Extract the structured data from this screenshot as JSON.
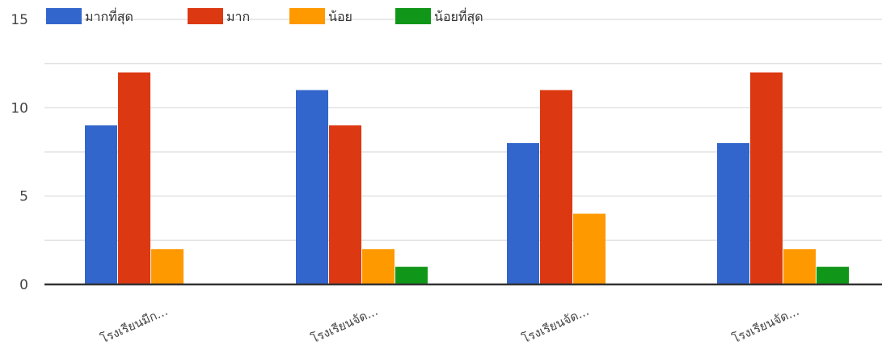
{
  "chart_data": {
    "type": "bar",
    "categories": [
      "โรงเรียนมีก...",
      "โรงเรียนจัด...",
      "โรงเรียนจัด...",
      "โรงเรียนจัด..."
    ],
    "series": [
      {
        "name": "มากที่สุด",
        "color": "#3366cc",
        "values": [
          9,
          11,
          8,
          8
        ]
      },
      {
        "name": "มาก",
        "color": "#dc3912",
        "values": [
          12,
          9,
          11,
          12
        ]
      },
      {
        "name": "น้อย",
        "color": "#ff9900",
        "values": [
          2,
          2,
          4,
          2
        ]
      },
      {
        "name": "น้อยที่สุด",
        "color": "#109618",
        "values": [
          0,
          1,
          0,
          1
        ]
      }
    ],
    "ylim": [
      0,
      15
    ],
    "yticks": [
      0,
      5,
      10,
      15
    ],
    "grid": true,
    "legend_position": "top",
    "title": "",
    "xlabel": "",
    "ylabel": ""
  }
}
